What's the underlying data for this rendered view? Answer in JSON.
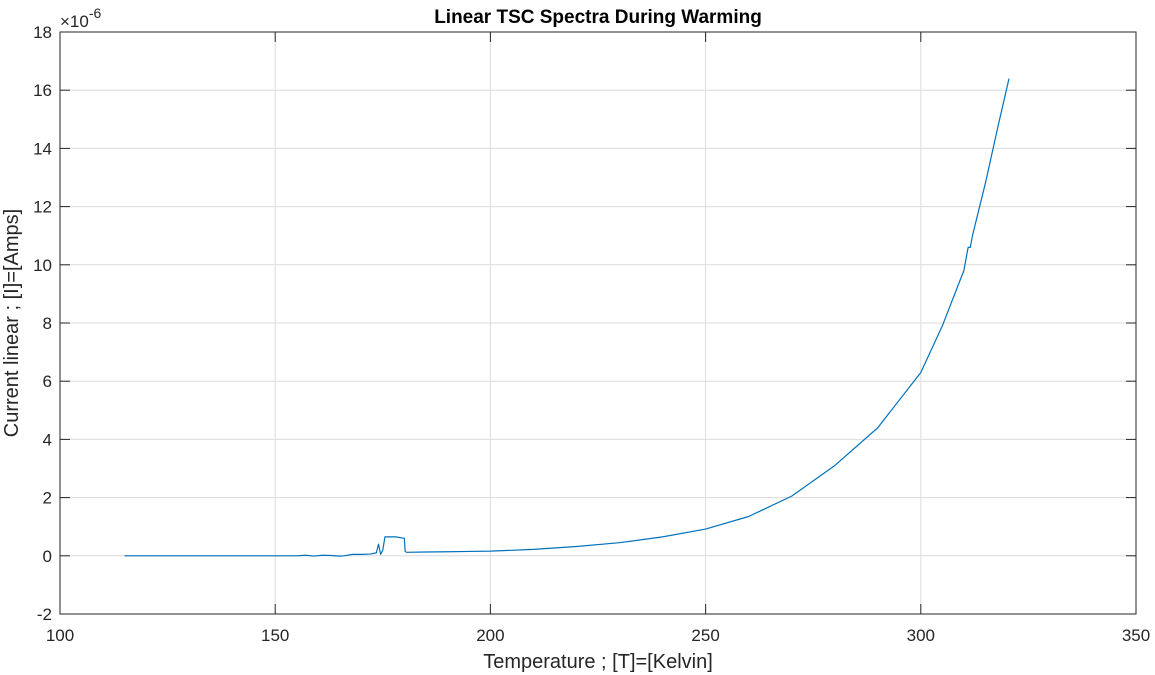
{
  "chart_data": {
    "type": "line",
    "title": "Linear TSC Spectra During Warming",
    "xlabel": "Temperature ; [T]=[Kelvin]",
    "ylabel": "Current linear ; [I]=[Amps]",
    "y_exponent_label": "×10",
    "y_exponent_power": "-6",
    "xlim": [
      100,
      350
    ],
    "ylim": [
      -2,
      18
    ],
    "x_ticks": [
      100,
      150,
      200,
      250,
      300,
      350
    ],
    "y_ticks": [
      -2,
      0,
      2,
      4,
      6,
      8,
      10,
      12,
      14,
      16,
      18
    ],
    "x_tick_labels": [
      "100",
      "150",
      "200",
      "250",
      "300",
      "350"
    ],
    "y_tick_labels": [
      "-2",
      "0",
      "2",
      "4",
      "6",
      "8",
      "10",
      "12",
      "14",
      "16",
      "18"
    ],
    "grid": true,
    "series": [
      {
        "color": "#0072BD",
        "x": [
          115,
          130,
          140,
          150,
          155,
          157,
          159,
          161,
          163,
          165,
          166,
          168,
          170,
          172,
          173.5,
          174,
          174.5,
          175,
          175.5,
          176,
          178,
          180,
          180.2,
          180.5,
          185,
          190,
          195,
          200,
          210,
          220,
          230,
          240,
          250,
          260,
          270,
          280,
          290,
          300,
          305,
          310,
          311,
          311.5,
          312,
          315,
          318,
          320.5
        ],
        "y": [
          0.0,
          0.0,
          0.0,
          0.0,
          0.0,
          0.02,
          -0.01,
          0.02,
          0.01,
          -0.01,
          0.0,
          0.05,
          0.05,
          0.06,
          0.1,
          0.4,
          0.05,
          0.2,
          0.65,
          0.65,
          0.65,
          0.6,
          0.15,
          0.12,
          0.13,
          0.14,
          0.15,
          0.16,
          0.22,
          0.32,
          0.45,
          0.65,
          0.92,
          1.35,
          2.05,
          3.1,
          4.4,
          6.3,
          7.9,
          9.8,
          10.6,
          10.6,
          11.0,
          12.8,
          14.8,
          16.4
        ]
      }
    ]
  }
}
